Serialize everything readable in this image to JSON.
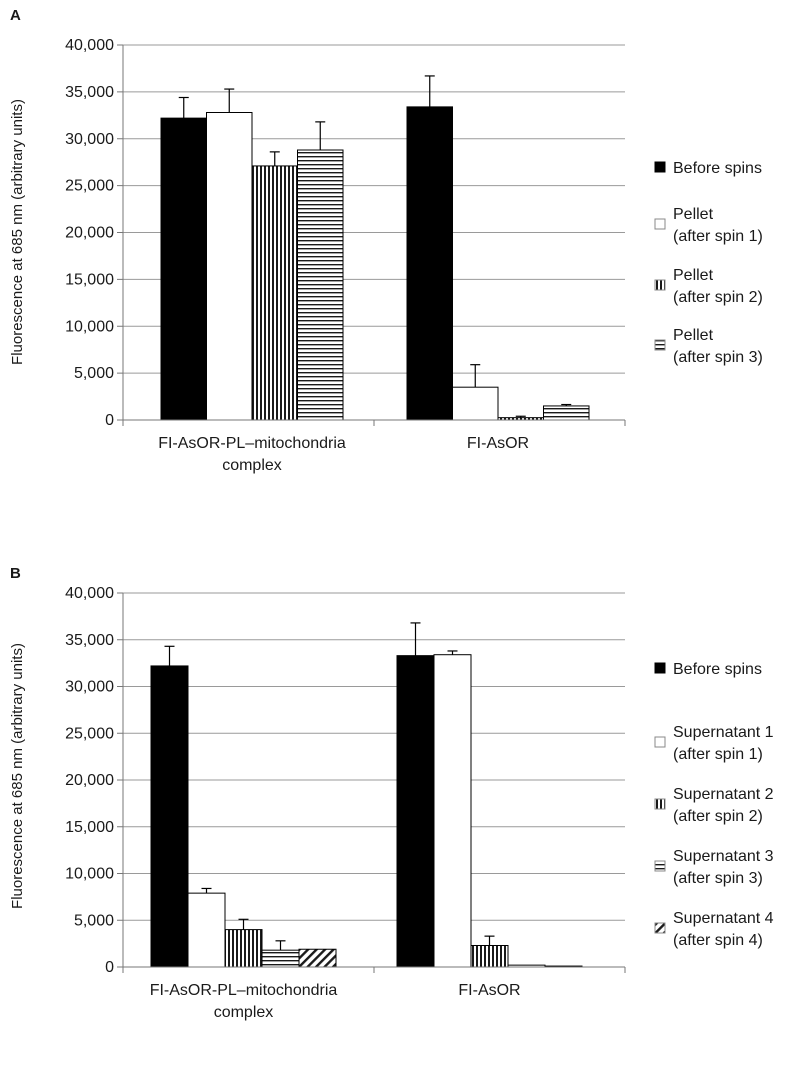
{
  "chart_data": [
    {
      "panel_label": "A",
      "type": "bar",
      "ylabel": "Fluorescence at 685 nm (arbitrary units)",
      "ylim": [
        0,
        40000
      ],
      "yticks": [
        "0",
        "5,000",
        "10,000",
        "15,000",
        "20,000",
        "25,000",
        "30,000",
        "35,000",
        "40,000"
      ],
      "categories": [
        {
          "lines": [
            "FI-AsOR-PL–mitochondria",
            "complex"
          ]
        },
        {
          "lines": [
            "FI-AsOR"
          ]
        }
      ],
      "series": [
        {
          "name": "Before spins",
          "legend_lines": [
            "Before spins"
          ],
          "pattern": "solid",
          "values": [
            32200,
            33400
          ],
          "errors": [
            2200,
            3300
          ]
        },
        {
          "name": "Pellet (after spin 1)",
          "legend_lines": [
            "Pellet",
            "(after spin 1)"
          ],
          "pattern": "white",
          "values": [
            32800,
            3500
          ],
          "errors": [
            2500,
            2400
          ]
        },
        {
          "name": "Pellet (after spin 2)",
          "legend_lines": [
            "Pellet",
            "(after spin 2)"
          ],
          "pattern": "vertical",
          "values": [
            27100,
            250
          ],
          "errors": [
            1500,
            150
          ]
        },
        {
          "name": "Pellet (after spin 3)",
          "legend_lines": [
            "Pellet",
            "(after spin 3)"
          ],
          "pattern": "horizontal",
          "values": [
            28800,
            1500
          ],
          "errors": [
            3000,
            150
          ]
        }
      ],
      "grid": true,
      "legend_position": "right"
    },
    {
      "panel_label": "B",
      "type": "bar",
      "ylabel": "Fluorescence at 685 nm (arbitrary units)",
      "ylim": [
        0,
        40000
      ],
      "yticks": [
        "0",
        "5,000",
        "10,000",
        "15,000",
        "20,000",
        "25,000",
        "30,000",
        "35,000",
        "40,000"
      ],
      "categories": [
        {
          "lines": [
            "FI-AsOR-PL–mitochondria",
            "complex"
          ]
        },
        {
          "lines": [
            "FI-AsOR"
          ]
        }
      ],
      "series": [
        {
          "name": "Before spins",
          "legend_lines": [
            "Before spins"
          ],
          "pattern": "solid",
          "values": [
            32200,
            33300
          ],
          "errors": [
            2100,
            3500
          ]
        },
        {
          "name": "Supernatant 1 (after spin 1)",
          "legend_lines": [
            "Supernatant 1",
            "(after spin 1)"
          ],
          "pattern": "white",
          "values": [
            7900,
            33400
          ],
          "errors": [
            500,
            400
          ]
        },
        {
          "name": "Supernatant 2 (after spin 2)",
          "legend_lines": [
            "Supernatant 2",
            "(after spin 2)"
          ],
          "pattern": "vertical",
          "values": [
            4000,
            2300
          ],
          "errors": [
            1100,
            1000
          ]
        },
        {
          "name": "Supernatant 3 (after spin 3)",
          "legend_lines": [
            "Supernatant 3",
            "(after spin 3)"
          ],
          "pattern": "horizontal",
          "values": [
            1800,
            200
          ],
          "errors": [
            1000,
            0
          ]
        },
        {
          "name": "Supernatant 4 (after spin 4)",
          "legend_lines": [
            "Supernatant 4",
            "(after spin 4)"
          ],
          "pattern": "diagonal",
          "values": [
            1900,
            100
          ],
          "errors": [
            0,
            0
          ]
        }
      ],
      "grid": true,
      "legend_position": "right"
    }
  ]
}
